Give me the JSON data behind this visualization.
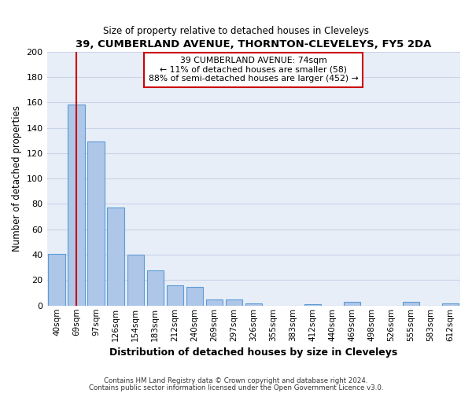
{
  "title": "39, CUMBERLAND AVENUE, THORNTON-CLEVELEYS, FY5 2DA",
  "subtitle": "Size of property relative to detached houses in Cleveleys",
  "xlabel": "Distribution of detached houses by size in Cleveleys",
  "ylabel": "Number of detached properties",
  "bin_labels": [
    "40sqm",
    "69sqm",
    "97sqm",
    "126sqm",
    "154sqm",
    "183sqm",
    "212sqm",
    "240sqm",
    "269sqm",
    "297sqm",
    "326sqm",
    "355sqm",
    "383sqm",
    "412sqm",
    "440sqm",
    "469sqm",
    "498sqm",
    "526sqm",
    "555sqm",
    "583sqm",
    "612sqm"
  ],
  "bar_heights": [
    41,
    158,
    129,
    77,
    40,
    28,
    16,
    15,
    5,
    5,
    2,
    0,
    0,
    1,
    0,
    3,
    0,
    0,
    3,
    0,
    2
  ],
  "bar_color": "#aec6e8",
  "bar_edge_color": "#5b9bd5",
  "grid_color": "#c8d4e8",
  "background_color": "#e8eef7",
  "property_line_x": 1.0,
  "property_line_color": "#cc0000",
  "annotation_box_text": "39 CUMBERLAND AVENUE: 74sqm\n← 11% of detached houses are smaller (58)\n88% of semi-detached houses are larger (452) →",
  "annotation_box_color": "#cc0000",
  "ylim": [
    0,
    200
  ],
  "yticks": [
    0,
    20,
    40,
    60,
    80,
    100,
    120,
    140,
    160,
    180,
    200
  ],
  "footnote1": "Contains HM Land Registry data © Crown copyright and database right 2024.",
  "footnote2": "Contains public sector information licensed under the Open Government Licence v3.0."
}
